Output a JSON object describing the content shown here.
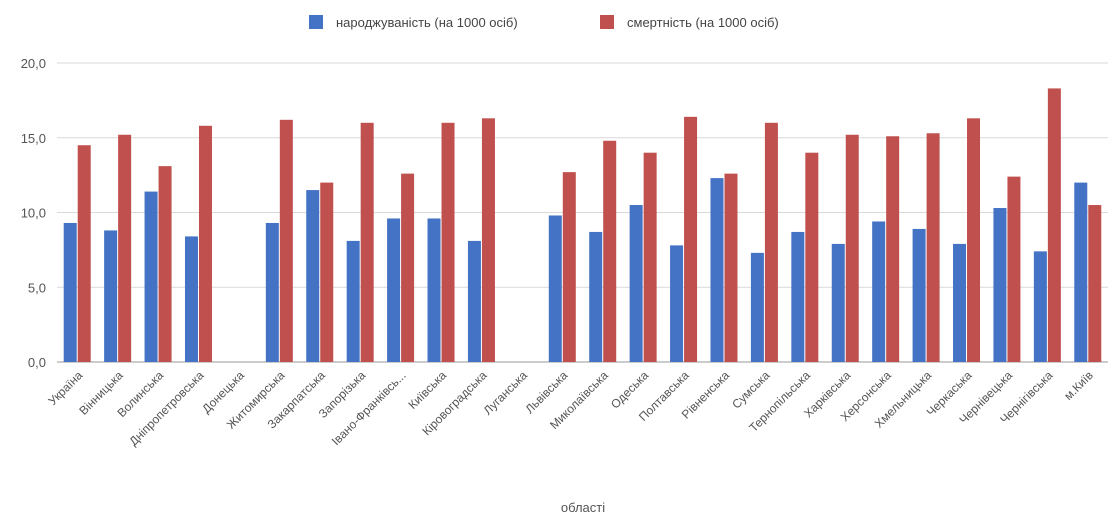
{
  "chart_data": {
    "type": "bar",
    "title": "",
    "xlabel": "області",
    "ylabel": "",
    "ylim": [
      0,
      20
    ],
    "yticks": [
      "0,0",
      "5,0",
      "10,0",
      "15,0",
      "20,0"
    ],
    "grid": true,
    "legend_position": "top",
    "categories": [
      "Україна",
      "Вінницька",
      "Волинська",
      "Дніпропетровська",
      "Донецька",
      "Житомирська",
      "Закарпатська",
      "Запорізька",
      "Івано-Франківсь...",
      "Київська",
      "Кіровоградська",
      "Луганська",
      "Львівська",
      "Миколаївська",
      "Одеська",
      "Полтавська",
      "Рівненська",
      "Сумська",
      "Тернопільська",
      "Харківська",
      "Херсонська",
      "Хмельницька",
      "Черкаська",
      "Чернівецька",
      "Чернігівська",
      "м.Київ"
    ],
    "series": [
      {
        "name": "народжуваність (на 1000 осіб)",
        "color": "#4472c4",
        "values": [
          9.3,
          8.8,
          11.4,
          8.4,
          null,
          9.3,
          11.5,
          8.1,
          9.6,
          9.6,
          8.1,
          null,
          9.8,
          8.7,
          10.5,
          7.8,
          12.3,
          7.3,
          8.7,
          7.9,
          9.4,
          8.9,
          7.9,
          10.3,
          7.4,
          12.0
        ]
      },
      {
        "name": "смертність (на 1000 осіб)",
        "color": "#c0504d",
        "values": [
          14.5,
          15.2,
          13.1,
          15.8,
          null,
          16.2,
          12.0,
          16.0,
          12.6,
          16.0,
          16.3,
          null,
          12.7,
          14.8,
          14.0,
          16.4,
          12.6,
          16.0,
          14.0,
          15.2,
          15.1,
          15.3,
          16.3,
          12.4,
          18.3,
          10.5
        ]
      }
    ]
  }
}
